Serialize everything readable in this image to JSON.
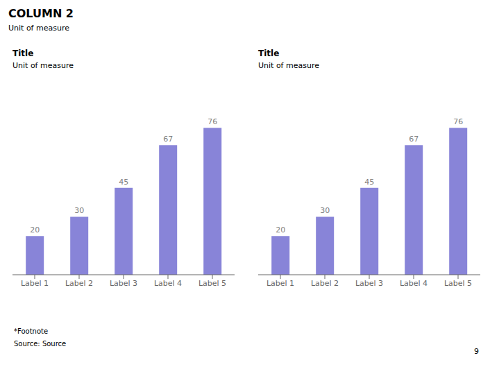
{
  "title": "COLUMN 2",
  "subtitle": "Unit of measure",
  "annotations": [
    "*Footnote",
    "Source: Source",
    "9"
  ],
  "chart_data": [
    {
      "type": "bar",
      "title": "Title",
      "subtitle": "Unit of measure",
      "categories": [
        "Label 1",
        "Label 2",
        "Label 3",
        "Label 4",
        "Label 5"
      ],
      "values": [
        20,
        30,
        45,
        67,
        76
      ],
      "color": "#8884d8",
      "ylim": [
        0,
        97.28
      ],
      "grid": false,
      "data_labels": true,
      "tick_labels": "x"
    },
    {
      "type": "bar",
      "title": "Title",
      "subtitle": "Unit of measure",
      "categories": [
        "Label 1",
        "Label 2",
        "Label 3",
        "Label 4",
        "Label 5"
      ],
      "values": [
        20,
        30,
        45,
        67,
        76
      ],
      "color": "#8884d8",
      "ylim": [
        0,
        97.28
      ],
      "grid": false,
      "data_labels": true,
      "tick_labels": "x"
    }
  ]
}
